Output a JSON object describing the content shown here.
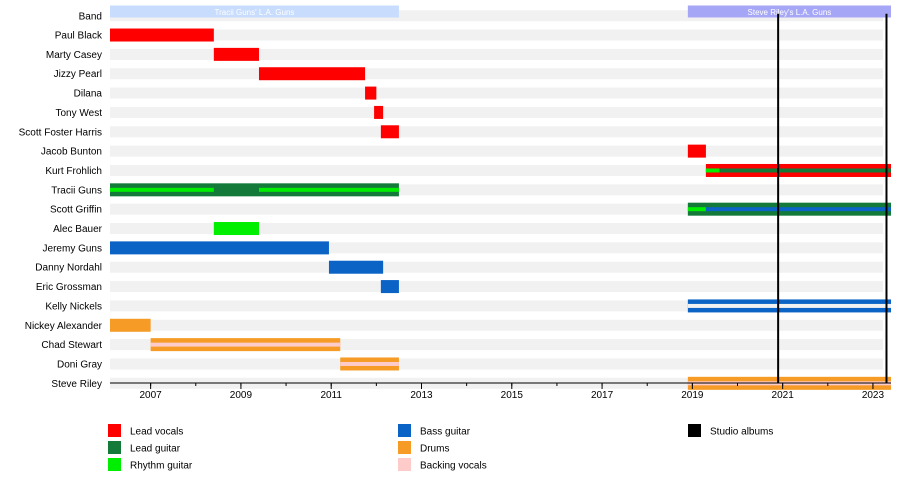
{
  "chart_data": {
    "type": "timeline",
    "title": "",
    "xlabel": "",
    "ylabel": "",
    "x_range": [
      2006.1,
      2023.4
    ],
    "x_ticks": [
      2007,
      2009,
      2011,
      2013,
      2015,
      2017,
      2019,
      2021,
      2023
    ],
    "colors": {
      "lead_vocals": "#ff0000",
      "lead_guitar": "#137a3a",
      "rhythm_guitar": "#00ee00",
      "bass_guitar": "#0a63c5",
      "drums": "#f59b26",
      "backing_vocals": "#fecbcb",
      "studio_albums": "#000000",
      "band_tracii": "#c8dcfe",
      "band_steve": "#a6a6f6",
      "row_stripe": "#f1f1f1"
    },
    "bands": [
      {
        "label": "Tracii Guns' L.A. Guns",
        "start": 2006.1,
        "end": 2012.5,
        "color_key": "band_tracii"
      },
      {
        "label": "Steve Riley's L.A. Guns",
        "start": 2018.9,
        "end": 2023.4,
        "color_key": "band_steve"
      }
    ],
    "band_row_label": "Band",
    "members": [
      {
        "name": "Paul Black",
        "spans": [
          {
            "start": 2006.1,
            "end": 2008.4,
            "role": "lead_vocals"
          }
        ]
      },
      {
        "name": "Marty Casey",
        "spans": [
          {
            "start": 2008.4,
            "end": 2009.4,
            "role": "lead_vocals"
          }
        ]
      },
      {
        "name": "Jizzy Pearl",
        "spans": [
          {
            "start": 2009.4,
            "end": 2011.75,
            "role": "lead_vocals"
          }
        ]
      },
      {
        "name": "Dilana",
        "spans": [
          {
            "start": 2011.75,
            "end": 2012.0,
            "role": "lead_vocals"
          }
        ]
      },
      {
        "name": "Tony West",
        "spans": [
          {
            "start": 2011.95,
            "end": 2012.15,
            "role": "lead_vocals"
          }
        ]
      },
      {
        "name": "Scott Foster Harris",
        "spans": [
          {
            "start": 2012.1,
            "end": 2012.5,
            "role": "lead_vocals"
          }
        ]
      },
      {
        "name": "Jacob Bunton",
        "spans": [
          {
            "start": 2018.9,
            "end": 2019.3,
            "role": "lead_vocals"
          }
        ]
      },
      {
        "name": "Kurt Frohlich",
        "spans": [
          {
            "start": 2019.3,
            "end": 2023.4,
            "role": "lead_vocals",
            "stripe": "lead_guitar",
            "stripe_start": 2019.3,
            "stripe_end": 2023.4
          },
          {
            "start": 2019.3,
            "end": 2019.6,
            "role": "none",
            "stripe": "rhythm_guitar",
            "stripe_start": 2019.3,
            "stripe_end": 2019.6
          }
        ]
      },
      {
        "name": "Tracii Guns",
        "spans": [
          {
            "start": 2006.1,
            "end": 2012.5,
            "role": "lead_guitar",
            "stripe": "rhythm_guitar",
            "stripe_start": 2006.1,
            "stripe_end": 2008.4
          },
          {
            "start": 2006.1,
            "end": 2012.5,
            "role": "none",
            "stripe": "rhythm_guitar",
            "stripe_start": 2009.4,
            "stripe_end": 2012.5
          }
        ]
      },
      {
        "name": "Scott Griffin",
        "spans": [
          {
            "start": 2018.9,
            "end": 2023.4,
            "role": "lead_guitar",
            "stripe": "rhythm_guitar",
            "stripe_start": 2018.9,
            "stripe_end": 2019.3
          },
          {
            "start": 2018.9,
            "end": 2023.4,
            "role": "none",
            "stripe": "bass_guitar",
            "stripe_start": 2019.3,
            "stripe_end": 2023.4
          }
        ]
      },
      {
        "name": "Alec Bauer",
        "spans": [
          {
            "start": 2008.4,
            "end": 2009.4,
            "role": "rhythm_guitar"
          }
        ]
      },
      {
        "name": "Jeremy Guns",
        "spans": [
          {
            "start": 2006.1,
            "end": 2010.95,
            "role": "bass_guitar"
          }
        ]
      },
      {
        "name": "Danny Nordahl",
        "spans": [
          {
            "start": 2010.95,
            "end": 2012.15,
            "role": "bass_guitar"
          }
        ]
      },
      {
        "name": "Eric Grossman",
        "spans": [
          {
            "start": 2012.1,
            "end": 2012.5,
            "role": "bass_guitar"
          }
        ]
      },
      {
        "name": "Kelly Nickels",
        "spans": [
          {
            "start": 2018.9,
            "end": 2023.4,
            "role": "bass_guitar",
            "stripe": "row_stripe",
            "stripe_start": 2018.9,
            "stripe_end": 2023.4
          }
        ]
      },
      {
        "name": "Nickey Alexander",
        "spans": [
          {
            "start": 2006.1,
            "end": 2007.0,
            "role": "drums"
          }
        ]
      },
      {
        "name": "Chad Stewart",
        "spans": [
          {
            "start": 2007.0,
            "end": 2011.2,
            "role": "drums",
            "stripe": "backing_vocals",
            "stripe_start": 2007.0,
            "stripe_end": 2011.2
          }
        ]
      },
      {
        "name": "Doni Gray",
        "spans": [
          {
            "start": 2011.2,
            "end": 2012.5,
            "role": "drums",
            "stripe": "backing_vocals",
            "stripe_start": 2011.2,
            "stripe_end": 2012.5
          }
        ]
      },
      {
        "name": "Steve Riley",
        "spans": [
          {
            "start": 2018.9,
            "end": 2023.4,
            "role": "drums",
            "stripe": "backing_vocals",
            "stripe_start": 2018.9,
            "stripe_end": 2023.4
          }
        ]
      }
    ],
    "album_lines": [
      2020.9,
      2023.3
    ],
    "legend": [
      {
        "label": "Lead vocals",
        "color_key": "lead_vocals",
        "col": 0,
        "row": 0
      },
      {
        "label": "Lead guitar",
        "color_key": "lead_guitar",
        "col": 0,
        "row": 1
      },
      {
        "label": "Rhythm guitar",
        "color_key": "rhythm_guitar",
        "col": 0,
        "row": 2
      },
      {
        "label": "Bass guitar",
        "color_key": "bass_guitar",
        "col": 1,
        "row": 0
      },
      {
        "label": "Drums",
        "color_key": "drums",
        "col": 1,
        "row": 1
      },
      {
        "label": "Backing vocals",
        "color_key": "backing_vocals",
        "col": 1,
        "row": 2
      },
      {
        "label": "Studio albums",
        "color_key": "studio_albums",
        "col": 2,
        "row": 0
      }
    ]
  }
}
